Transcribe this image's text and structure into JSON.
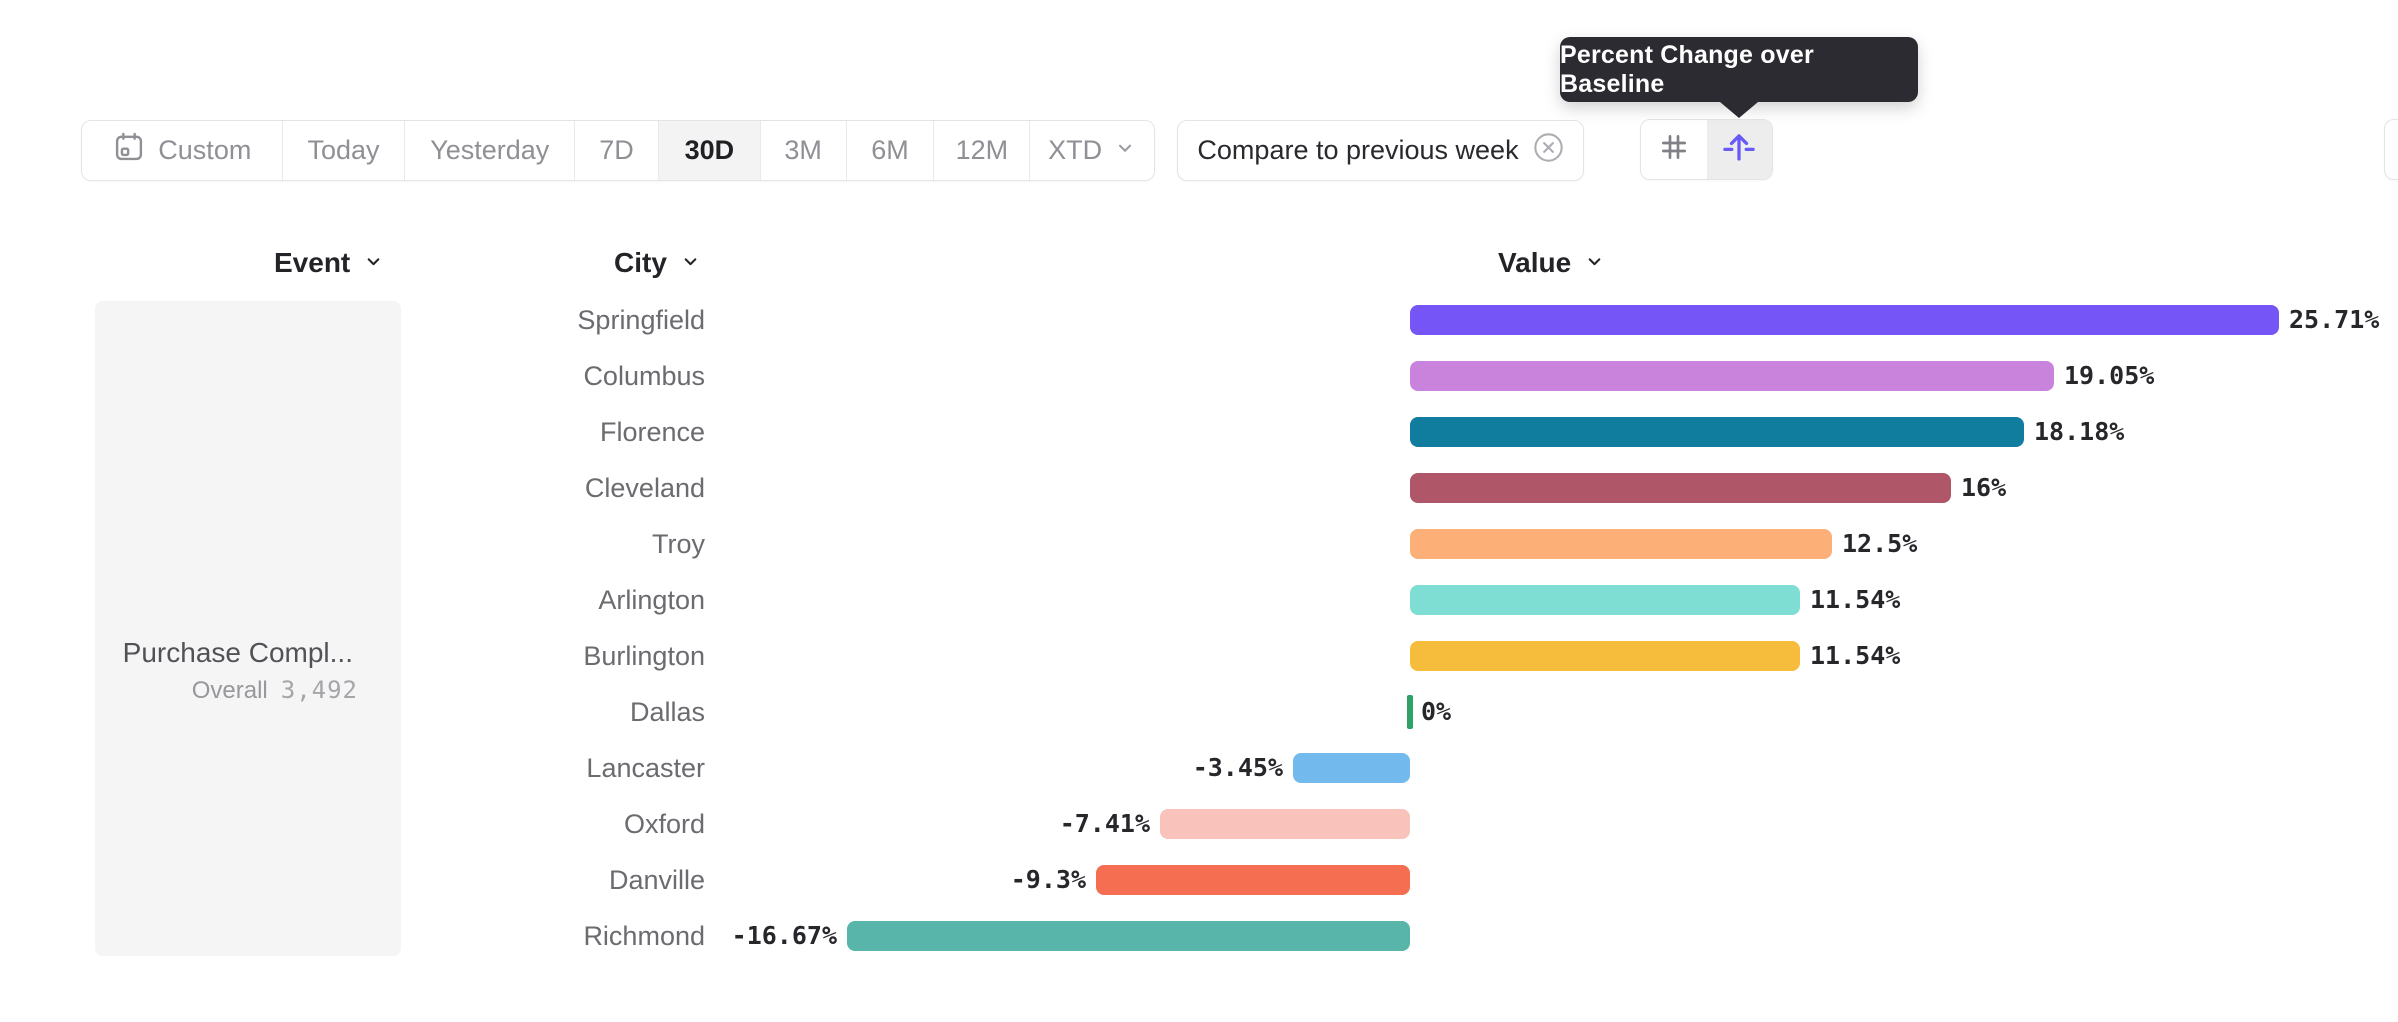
{
  "tooltip": {
    "text": "Percent Change over Baseline"
  },
  "date_range_toolbar": {
    "items": [
      {
        "label": "Custom",
        "icon": "calendar-icon",
        "selected": false
      },
      {
        "label": "Today",
        "selected": false
      },
      {
        "label": "Yesterday",
        "selected": false
      },
      {
        "label": "7D",
        "selected": false
      },
      {
        "label": "30D",
        "selected": true
      },
      {
        "label": "3M",
        "selected": false
      },
      {
        "label": "6M",
        "selected": false
      },
      {
        "label": "12M",
        "selected": false
      },
      {
        "label": "XTD",
        "icon": "chevron-down-icon",
        "selected": false
      }
    ]
  },
  "compare_control": {
    "label": "Compare to previous week",
    "icon": "x-circle-icon"
  },
  "chart_mode_toggle": {
    "options": [
      {
        "name": "numbers",
        "icon": "hash-icon",
        "selected": false
      },
      {
        "name": "percent-change-over-baseline",
        "icon": "baseline-arrow-icon",
        "selected": true
      }
    ]
  },
  "column_headers": {
    "event": "Event",
    "city": "City",
    "value": "Value"
  },
  "event_panel": {
    "event_name": "Purchase Compl...",
    "metric_label": "Overall",
    "metric_value": "3,492"
  },
  "colors": {
    "tooltip_bg": "#2b2b31",
    "accent_purple": "#675af6",
    "selected_segment_bg": "#f3f3f4",
    "border": "#e4e4e7",
    "zero_tick_green": "#2ea266"
  },
  "chart_data": {
    "type": "bar",
    "orientation": "horizontal",
    "title": "Percent Change over Baseline",
    "unit": "%",
    "baseline": 0,
    "xlim": [
      -16.67,
      25.71
    ],
    "grid": "off",
    "legend": "none",
    "categories": [
      "Springfield",
      "Columbus",
      "Florence",
      "Cleveland",
      "Troy",
      "Arlington",
      "Burlington",
      "Dallas",
      "Lancaster",
      "Oxford",
      "Danville",
      "Richmond"
    ],
    "values": [
      25.71,
      19.05,
      18.18,
      16,
      12.5,
      11.54,
      11.54,
      0,
      -3.45,
      -7.41,
      -9.3,
      -16.67
    ],
    "value_labels": [
      "25.71%",
      "19.05%",
      "18.18%",
      "16%",
      "12.5%",
      "11.54%",
      "11.54%",
      "0%",
      "-3.45%",
      "-7.41%",
      "-9.3%",
      "-16.67%"
    ],
    "bar_colors": [
      "#7655f7",
      "#c983dc",
      "#107d9e",
      "#af5669",
      "#fcb078",
      "#7fded4",
      "#f6bd3c",
      "#2ea266",
      "#72baee",
      "#f9c3bb",
      "#f56e52",
      "#57b6a9"
    ]
  }
}
